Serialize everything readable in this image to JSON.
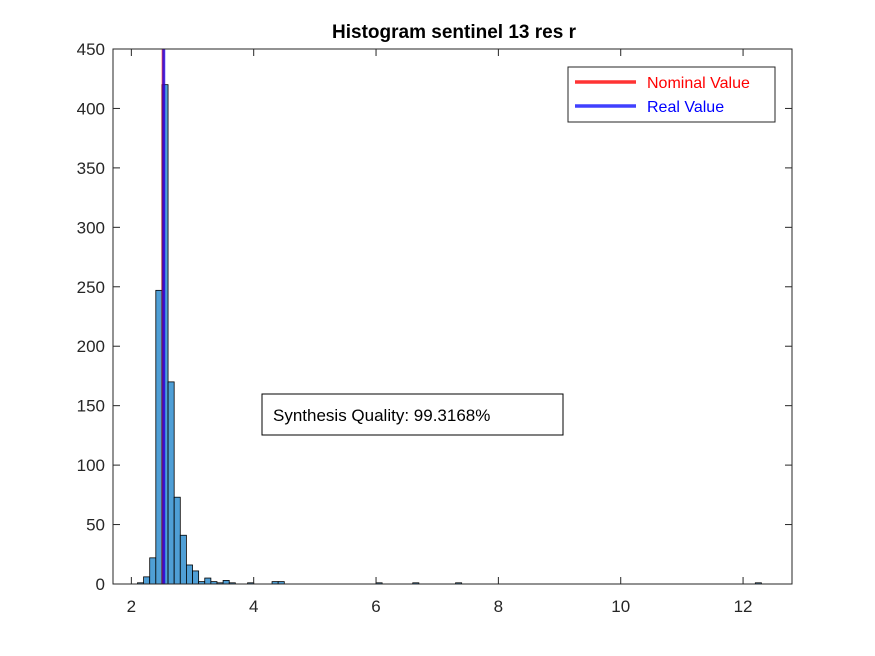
{
  "chart_data": {
    "type": "bar",
    "title": "Histogram sentinel 13 res r",
    "xlabel": "",
    "ylabel": "",
    "xlim": [
      1.7,
      12.8
    ],
    "ylim": [
      0,
      450
    ],
    "xticks": [
      2,
      4,
      6,
      8,
      10,
      12
    ],
    "yticks": [
      0,
      50,
      100,
      150,
      200,
      250,
      300,
      350,
      400,
      450
    ],
    "bin_width": 0.1,
    "bar_color": "#4f9fd6",
    "bins": [
      {
        "x": 2.15,
        "count": 1
      },
      {
        "x": 2.25,
        "count": 6
      },
      {
        "x": 2.35,
        "count": 22
      },
      {
        "x": 2.45,
        "count": 247
      },
      {
        "x": 2.55,
        "count": 420
      },
      {
        "x": 2.65,
        "count": 170
      },
      {
        "x": 2.75,
        "count": 73
      },
      {
        "x": 2.85,
        "count": 41
      },
      {
        "x": 2.95,
        "count": 16
      },
      {
        "x": 3.05,
        "count": 11
      },
      {
        "x": 3.15,
        "count": 2
      },
      {
        "x": 3.25,
        "count": 5
      },
      {
        "x": 3.35,
        "count": 2
      },
      {
        "x": 3.45,
        "count": 1
      },
      {
        "x": 3.55,
        "count": 3
      },
      {
        "x": 3.65,
        "count": 1
      },
      {
        "x": 3.95,
        "count": 1
      },
      {
        "x": 4.35,
        "count": 2
      },
      {
        "x": 4.45,
        "count": 2
      },
      {
        "x": 6.05,
        "count": 1
      },
      {
        "x": 6.65,
        "count": 1
      },
      {
        "x": 7.35,
        "count": 1
      },
      {
        "x": 12.25,
        "count": 1
      }
    ],
    "vertical_lines": [
      {
        "name": "Nominal Value",
        "x": 2.52,
        "color": "#ff0000"
      },
      {
        "name": "Real Value",
        "x": 2.53,
        "color": "#0000ff"
      }
    ],
    "legend": {
      "placement": "top-right",
      "entries": [
        {
          "label": "Nominal Value",
          "color": "#ff0000"
        },
        {
          "label": "Real Value",
          "color": "#0000ff"
        }
      ]
    },
    "annotation": "Synthesis Quality: 99.3168%",
    "grid": false
  }
}
